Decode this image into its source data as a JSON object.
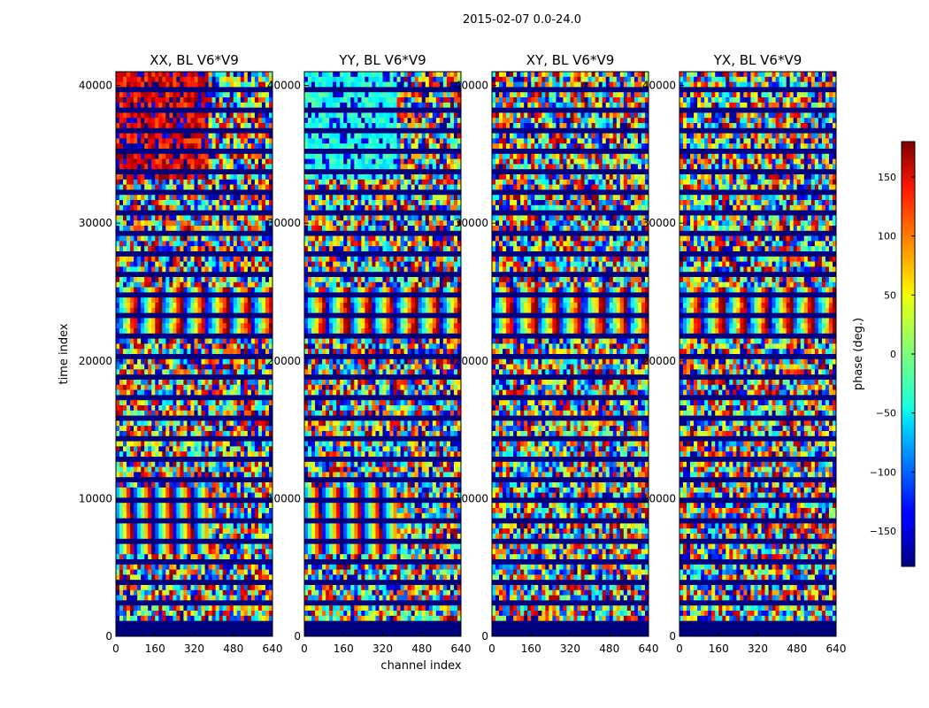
{
  "chart_data": {
    "type": "heatmap",
    "suptitle": "2015-02-07 0.0-24.0",
    "xlabel": "channel index",
    "ylabel": "time index",
    "colorbar_label": "phase (deg.)",
    "colormap": "jet",
    "value_range": [
      -180,
      180
    ],
    "x_range": [
      0,
      640
    ],
    "y_range": [
      0,
      41000
    ],
    "x_ticks": [
      0,
      160,
      320,
      480,
      640
    ],
    "y_ticks": [
      0,
      10000,
      20000,
      30000,
      40000
    ],
    "colorbar_ticks": [
      -150,
      -100,
      -50,
      0,
      50,
      100,
      150
    ],
    "panels": [
      {
        "title": "XX, BL V6*V9",
        "pol": "XX"
      },
      {
        "title": "YY, BL V6*V9",
        "pol": "YY"
      },
      {
        "title": "XY, BL V6*V9",
        "pol": "XY"
      },
      {
        "title": "YX, BL V6*V9",
        "pol": "YX"
      }
    ]
  }
}
